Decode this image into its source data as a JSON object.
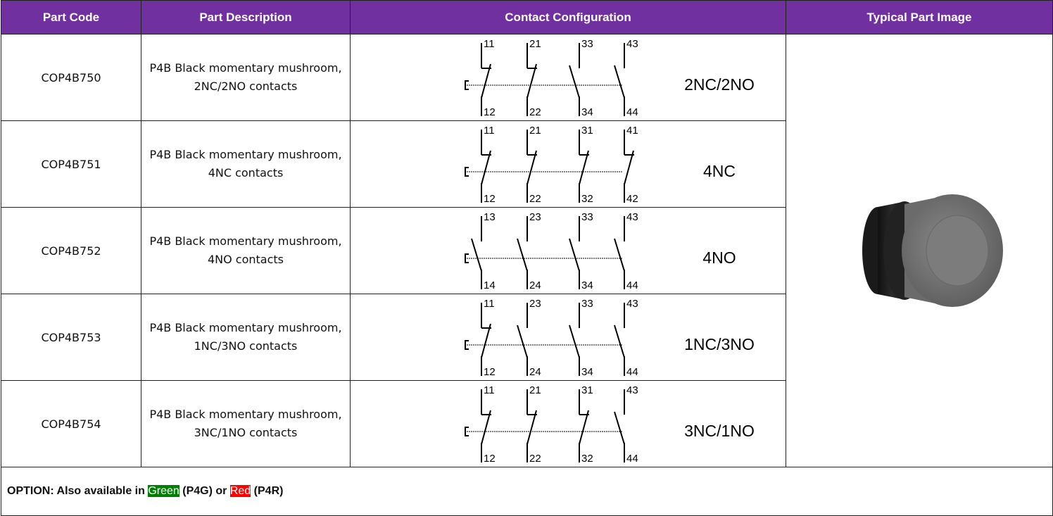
{
  "header": {
    "columns": [
      "Part Code",
      "Part Description",
      "Contact Configuration",
      "Typical Part Image"
    ]
  },
  "rows": [
    {
      "part_code": "COP4B750",
      "description": [
        "P4B Black momentary mushroom,",
        "2NC/2NO contacts"
      ],
      "contacts": [
        {
          "top": "11",
          "bottom": "12"
        },
        {
          "top": "21",
          "bottom": "22"
        },
        {
          "top": "33",
          "bottom": "34"
        },
        {
          "top": "43",
          "bottom": "44"
        }
      ],
      "configuration": "2NC/2NO"
    },
    {
      "part_code": "COP4B751",
      "description": [
        "P4B Black momentary mushroom,",
        "4NC contacts"
      ],
      "contacts": [
        {
          "top": "11",
          "bottom": "12"
        },
        {
          "top": "21",
          "bottom": "22"
        },
        {
          "top": "31",
          "bottom": "32"
        },
        {
          "top": "41",
          "bottom": "42"
        }
      ],
      "configuration": "4NC"
    },
    {
      "part_code": "COP4B752",
      "description": [
        "P4B Black momentary mushroom,",
        "4NO contacts"
      ],
      "contacts": [
        {
          "top": "13",
          "bottom": "14"
        },
        {
          "top": "23",
          "bottom": "24"
        },
        {
          "top": "33",
          "bottom": "34"
        },
        {
          "top": "43",
          "bottom": "44"
        }
      ],
      "configuration": "4NO"
    },
    {
      "part_code": "COP4B753",
      "description": [
        "P4B Black momentary mushroom,",
        "1NC/3NO contacts"
      ],
      "contacts": [
        {
          "top": "11",
          "bottom": "12"
        },
        {
          "top": "23",
          "bottom": "24"
        },
        {
          "top": "33",
          "bottom": "34"
        },
        {
          "top": "43",
          "bottom": "44"
        }
      ],
      "configuration": "1NC/3NO"
    },
    {
      "part_code": "COP4B754",
      "description": [
        "P4B Black momentary mushroom,",
        "3NC/1NO contacts"
      ],
      "contacts": [
        {
          "top": "11",
          "bottom": "12"
        },
        {
          "top": "21",
          "bottom": "22"
        },
        {
          "top": "31",
          "bottom": "32"
        },
        {
          "top": "43",
          "bottom": "44"
        }
      ],
      "configuration": "3NC/1NO"
    }
  ],
  "option": {
    "prefix": "OPTION: Also available in",
    "green": "Green",
    "green_code": "(P4G) or",
    "red": "Red",
    "red_code": "(P4R)"
  }
}
